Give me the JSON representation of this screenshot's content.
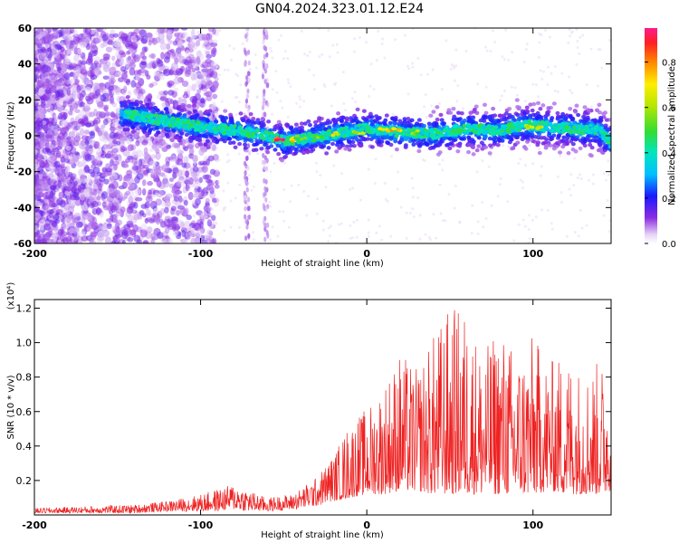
{
  "title": "GN04.2024.323.01.12.E24",
  "colors": {
    "spectrogram_cmap": "rainbow",
    "snr_line": "#ee2222"
  },
  "chart_data": [
    {
      "type": "heatmap",
      "title": "GN04.2024.323.01.12.E24",
      "xlabel": "Height of straight line (km)",
      "ylabel": "Frequency (Hz)",
      "xlim": [
        -200,
        147
      ],
      "ylim": [
        -60,
        60
      ],
      "xticks": [
        "-200",
        "-100",
        "0",
        "100"
      ],
      "yticks": [
        "60",
        "40",
        "20",
        "0",
        "-20",
        "-40",
        "-60"
      ],
      "colorbar": {
        "label": "Normalized spectral amplitude",
        "range": [
          0.0,
          0.95
        ],
        "ticks": [
          "0.0",
          "0.2",
          "0.4",
          "0.6",
          "0.8"
        ]
      },
      "ridge": {
        "description_points_x": [
          -145,
          -120,
          -100,
          -80,
          -60,
          -50,
          -40,
          -20,
          0,
          20,
          40,
          60,
          80,
          95,
          110,
          125,
          140,
          147
        ],
        "description_points_y": [
          12,
          8,
          5,
          3,
          0,
          -3,
          -2,
          1,
          4,
          2,
          1,
          4,
          3,
          6,
          5,
          4,
          3,
          -4
        ]
      }
    },
    {
      "type": "line",
      "xlabel": "Height of straight line (km)",
      "ylabel": "SNR (10 * v/v)",
      "y_multiplier": "(x10⁴)",
      "xlim": [
        -200,
        147
      ],
      "ylim": [
        0,
        1.25
      ],
      "xticks": [
        "-200",
        "-100",
        "0",
        "100"
      ],
      "yticks": [
        "0.2",
        "0.4",
        "0.6",
        "0.8",
        "1.0",
        "1.2"
      ],
      "envelope_x": [
        -200,
        -170,
        -140,
        -120,
        -100,
        -90,
        -80,
        -70,
        -60,
        -45,
        -30,
        -20,
        -10,
        0,
        10,
        20,
        30,
        40,
        50,
        60,
        70,
        80,
        90,
        100,
        110,
        120,
        130,
        140,
        147
      ],
      "envelope_max": [
        0.04,
        0.05,
        0.06,
        0.08,
        0.12,
        0.15,
        0.18,
        0.14,
        0.1,
        0.12,
        0.22,
        0.35,
        0.55,
        0.62,
        0.78,
        0.95,
        0.85,
        1.05,
        1.22,
        1.2,
        0.95,
        1.1,
        0.95,
        1.05,
        0.9,
        0.95,
        0.85,
        0.9,
        0.85
      ],
      "envelope_min": [
        0.01,
        0.01,
        0.01,
        0.02,
        0.02,
        0.02,
        0.03,
        0.02,
        0.02,
        0.03,
        0.05,
        0.08,
        0.1,
        0.12,
        0.12,
        0.14,
        0.14,
        0.12,
        0.12,
        0.12,
        0.12,
        0.12,
        0.12,
        0.12,
        0.14,
        0.12,
        0.12,
        0.12,
        0.14
      ]
    }
  ]
}
